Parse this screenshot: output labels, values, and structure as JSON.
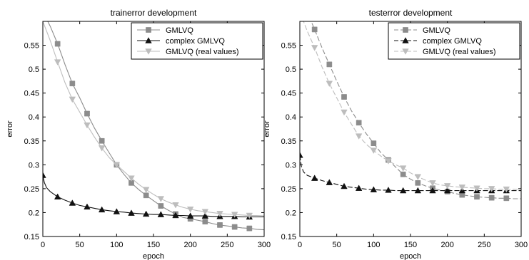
{
  "chart_data": [
    {
      "type": "line",
      "title": "trainerror development",
      "xlabel": "epoch",
      "ylabel": "error",
      "xlim": [
        0,
        300
      ],
      "ylim": [
        0.15,
        0.6
      ],
      "xticks": [
        0,
        50,
        100,
        150,
        200,
        250,
        300
      ],
      "yticks": [
        0.15,
        0.2,
        0.25,
        0.3,
        0.35,
        0.4,
        0.45,
        0.5,
        0.55
      ],
      "grid": false,
      "legend": "top-right",
      "series": [
        {
          "name": "GMLVQ",
          "marker": "square",
          "dash": "solid",
          "color": "#8c8c8c",
          "x": [
            0,
            10,
            20,
            30,
            40,
            50,
            60,
            70,
            80,
            90,
            100,
            110,
            120,
            130,
            140,
            150,
            160,
            170,
            180,
            190,
            200,
            210,
            220,
            230,
            240,
            250,
            260,
            270,
            280,
            290,
            300
          ],
          "y": [
            0.62,
            0.59,
            0.553,
            0.51,
            0.47,
            0.44,
            0.407,
            0.377,
            0.35,
            0.325,
            0.3,
            0.28,
            0.262,
            0.248,
            0.236,
            0.225,
            0.214,
            0.205,
            0.197,
            0.19,
            0.187,
            0.184,
            0.181,
            0.177,
            0.174,
            0.172,
            0.17,
            0.168,
            0.167,
            0.165,
            0.164
          ],
          "marker_x": [
            20,
            40,
            60,
            80,
            100,
            120,
            140,
            160,
            180,
            200,
            220,
            240,
            260,
            280
          ]
        },
        {
          "name": "complex GMLVQ",
          "marker": "triangle-up",
          "dash": "solid",
          "color": "#111111",
          "x": [
            0,
            2,
            5,
            10,
            20,
            30,
            40,
            50,
            60,
            70,
            80,
            90,
            100,
            110,
            120,
            130,
            140,
            150,
            160,
            170,
            180,
            190,
            200,
            210,
            220,
            230,
            240,
            250,
            260,
            270,
            280,
            290,
            300
          ],
          "y": [
            0.278,
            0.263,
            0.252,
            0.244,
            0.233,
            0.226,
            0.22,
            0.215,
            0.212,
            0.209,
            0.206,
            0.204,
            0.202,
            0.201,
            0.199,
            0.198,
            0.197,
            0.196,
            0.196,
            0.195,
            0.194,
            0.194,
            0.193,
            0.193,
            0.193,
            0.192,
            0.192,
            0.192,
            0.192,
            0.191,
            0.191,
            0.191,
            0.191
          ],
          "marker_x": [
            0,
            20,
            40,
            60,
            80,
            100,
            120,
            140,
            160,
            180,
            200,
            220,
            240,
            260,
            280
          ]
        },
        {
          "name": "GMLVQ (real values)",
          "marker": "triangle-down",
          "dash": "solid",
          "color": "#bdbdbd",
          "x": [
            0,
            10,
            20,
            30,
            40,
            50,
            60,
            70,
            80,
            90,
            100,
            110,
            120,
            130,
            140,
            150,
            160,
            170,
            180,
            190,
            200,
            210,
            220,
            230,
            240,
            250,
            260,
            270,
            280,
            290,
            300
          ],
          "y": [
            0.6,
            0.56,
            0.515,
            0.472,
            0.437,
            0.41,
            0.383,
            0.358,
            0.335,
            0.315,
            0.3,
            0.286,
            0.272,
            0.259,
            0.248,
            0.238,
            0.229,
            0.222,
            0.216,
            0.211,
            0.207,
            0.204,
            0.202,
            0.2,
            0.198,
            0.197,
            0.196,
            0.195,
            0.194,
            0.194,
            0.193
          ],
          "marker_x": [
            20,
            40,
            60,
            80,
            100,
            120,
            140,
            160,
            180,
            200,
            220,
            240,
            260,
            280
          ]
        }
      ]
    },
    {
      "type": "line",
      "title": "testerror development",
      "xlabel": "epoch",
      "ylabel": "error",
      "xlim": [
        0,
        300
      ],
      "ylim": [
        0.15,
        0.6
      ],
      "xticks": [
        0,
        50,
        100,
        150,
        200,
        250,
        300
      ],
      "yticks": [
        0.15,
        0.2,
        0.25,
        0.3,
        0.35,
        0.4,
        0.45,
        0.5,
        0.55
      ],
      "grid": false,
      "legend": "top-right",
      "series": [
        {
          "name": "GMLVQ",
          "marker": "square",
          "dash": "dashed",
          "color": "#8c8c8c",
          "x": [
            0,
            10,
            20,
            30,
            40,
            50,
            60,
            70,
            80,
            90,
            100,
            110,
            120,
            130,
            140,
            150,
            160,
            170,
            180,
            190,
            200,
            210,
            220,
            230,
            240,
            250,
            260,
            270,
            280,
            290,
            300
          ],
          "y": [
            0.65,
            0.62,
            0.583,
            0.545,
            0.51,
            0.475,
            0.442,
            0.413,
            0.388,
            0.365,
            0.345,
            0.325,
            0.31,
            0.295,
            0.28,
            0.27,
            0.262,
            0.256,
            0.251,
            0.247,
            0.244,
            0.24,
            0.237,
            0.235,
            0.233,
            0.232,
            0.231,
            0.23,
            0.23,
            0.229,
            0.229
          ],
          "marker_x": [
            20,
            40,
            60,
            80,
            100,
            120,
            140,
            160,
            180,
            200,
            220,
            240,
            260,
            280
          ]
        },
        {
          "name": "complex GMLVQ",
          "marker": "triangle-up",
          "dash": "dashed",
          "color": "#111111",
          "x": [
            0,
            2,
            5,
            10,
            20,
            30,
            40,
            50,
            60,
            70,
            80,
            90,
            100,
            110,
            120,
            130,
            140,
            150,
            160,
            170,
            180,
            190,
            200,
            210,
            220,
            230,
            240,
            250,
            260,
            270,
            280,
            290,
            300
          ],
          "y": [
            0.32,
            0.297,
            0.285,
            0.278,
            0.272,
            0.267,
            0.263,
            0.259,
            0.255,
            0.253,
            0.251,
            0.249,
            0.248,
            0.247,
            0.247,
            0.246,
            0.246,
            0.246,
            0.246,
            0.246,
            0.246,
            0.246,
            0.246,
            0.246,
            0.246,
            0.246,
            0.246,
            0.246,
            0.246,
            0.246,
            0.246,
            0.246,
            0.246
          ],
          "marker_x": [
            0,
            20,
            40,
            60,
            80,
            100,
            120,
            140,
            160,
            180,
            200,
            220,
            240,
            260,
            280
          ]
        },
        {
          "name": "GMLVQ (real values)",
          "marker": "triangle-down",
          "dash": "dashed",
          "color": "#bdbdbd",
          "x": [
            0,
            10,
            20,
            30,
            40,
            50,
            60,
            70,
            80,
            90,
            100,
            110,
            120,
            130,
            140,
            150,
            160,
            170,
            180,
            190,
            200,
            210,
            220,
            230,
            240,
            250,
            260,
            270,
            280,
            290,
            300
          ],
          "y": [
            0.62,
            0.58,
            0.545,
            0.505,
            0.47,
            0.44,
            0.41,
            0.385,
            0.36,
            0.343,
            0.33,
            0.318,
            0.308,
            0.3,
            0.293,
            0.283,
            0.275,
            0.268,
            0.262,
            0.258,
            0.256,
            0.254,
            0.253,
            0.252,
            0.251,
            0.25,
            0.25,
            0.249,
            0.249,
            0.249,
            0.249
          ],
          "marker_x": [
            20,
            40,
            60,
            80,
            100,
            120,
            140,
            160,
            180,
            200,
            220,
            240,
            260,
            280
          ]
        }
      ]
    }
  ]
}
